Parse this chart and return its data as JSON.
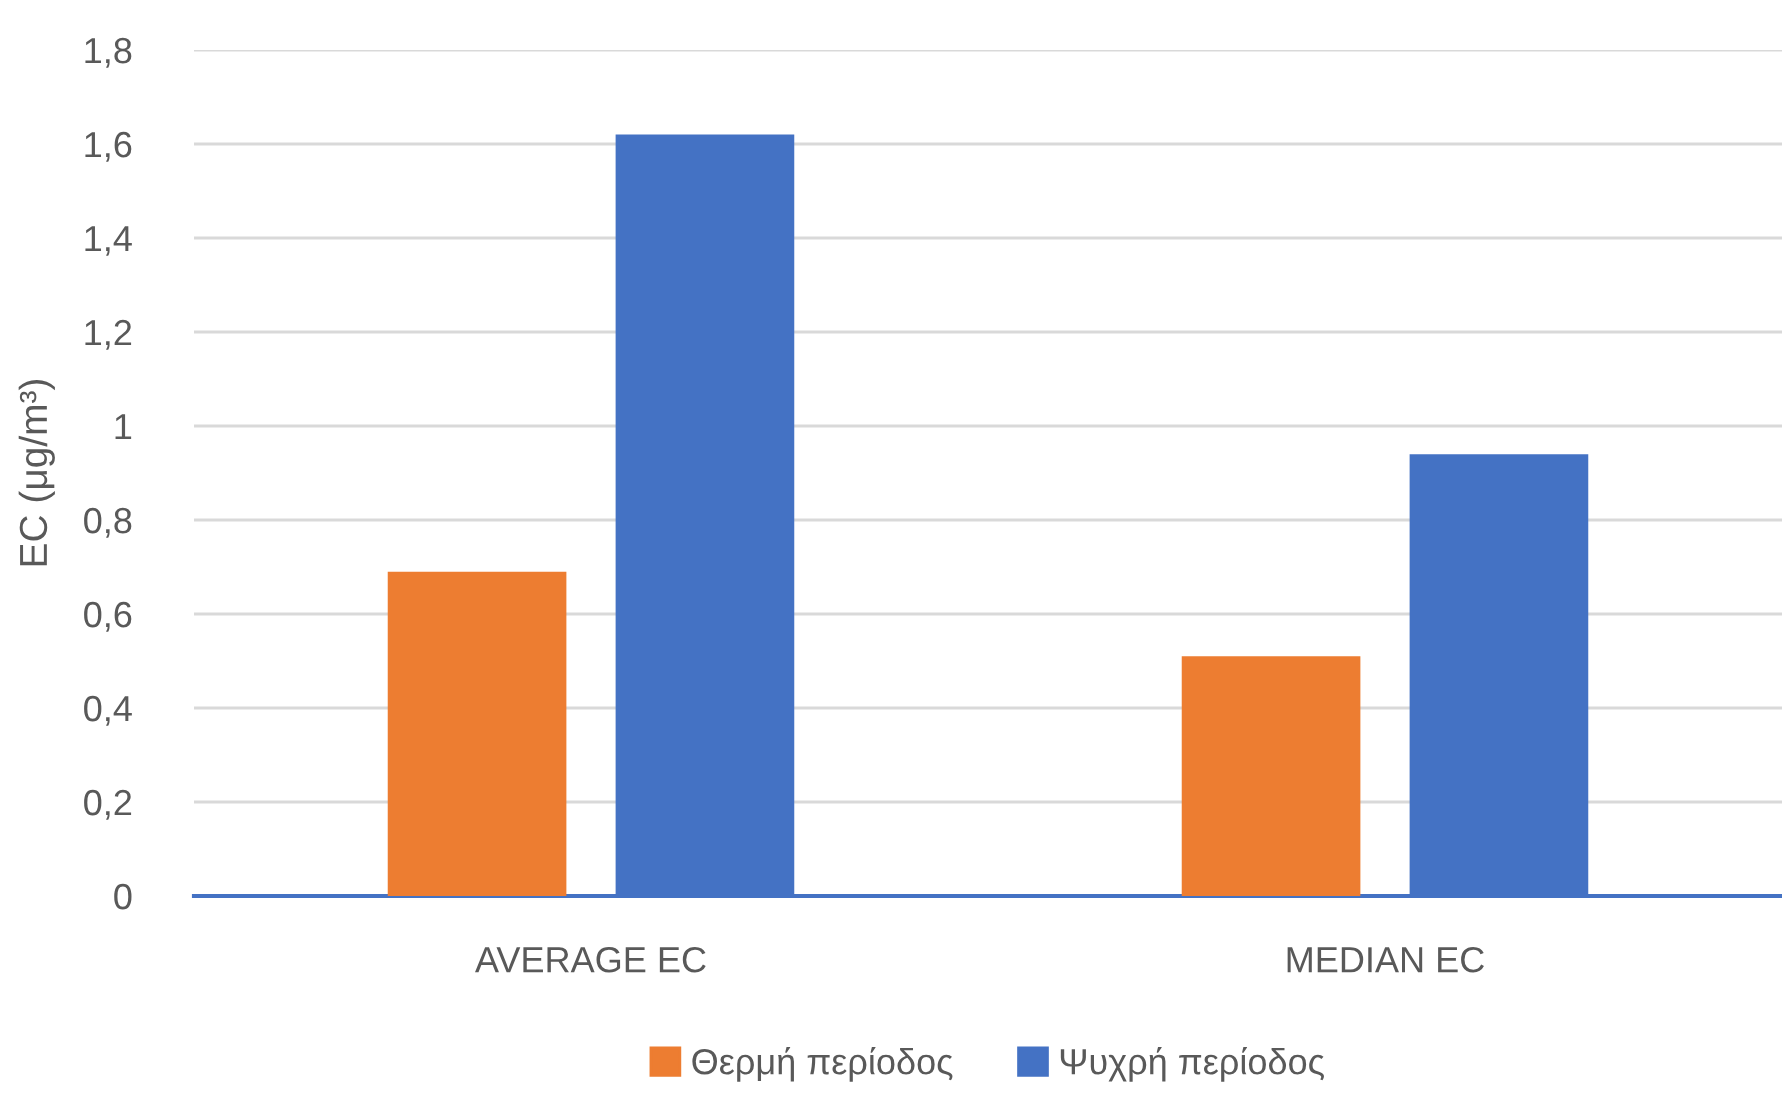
{
  "chart_data": {
    "type": "bar",
    "ylabel": "EC (μg/m³)",
    "categories": [
      "AVERAGE EC",
      "MEDIAN EC"
    ],
    "series": [
      {
        "name": "Θερμή περίοδος",
        "color": "#ed7d31",
        "values": [
          0.69,
          0.51
        ]
      },
      {
        "name": "Ψυχρή περίοδος",
        "color": "#4472c4",
        "values": [
          1.62,
          0.94
        ]
      }
    ],
    "ylim": [
      0,
      1.8
    ],
    "yticks": [
      0,
      {
        "value": 0.2,
        "label": "0,2"
      },
      {
        "value": 0.4,
        "label": "0,4"
      },
      {
        "value": 0.6,
        "label": "0,6"
      },
      {
        "value": 0.8,
        "label": "0,8"
      },
      1,
      {
        "value": 1.2,
        "label": "1,2"
      },
      {
        "value": 1.4,
        "label": "1,4"
      },
      {
        "value": 1.6,
        "label": "1,6"
      },
      {
        "value": 1.8,
        "label": "1,8"
      }
    ],
    "grid": "y",
    "legend": "bottom"
  }
}
